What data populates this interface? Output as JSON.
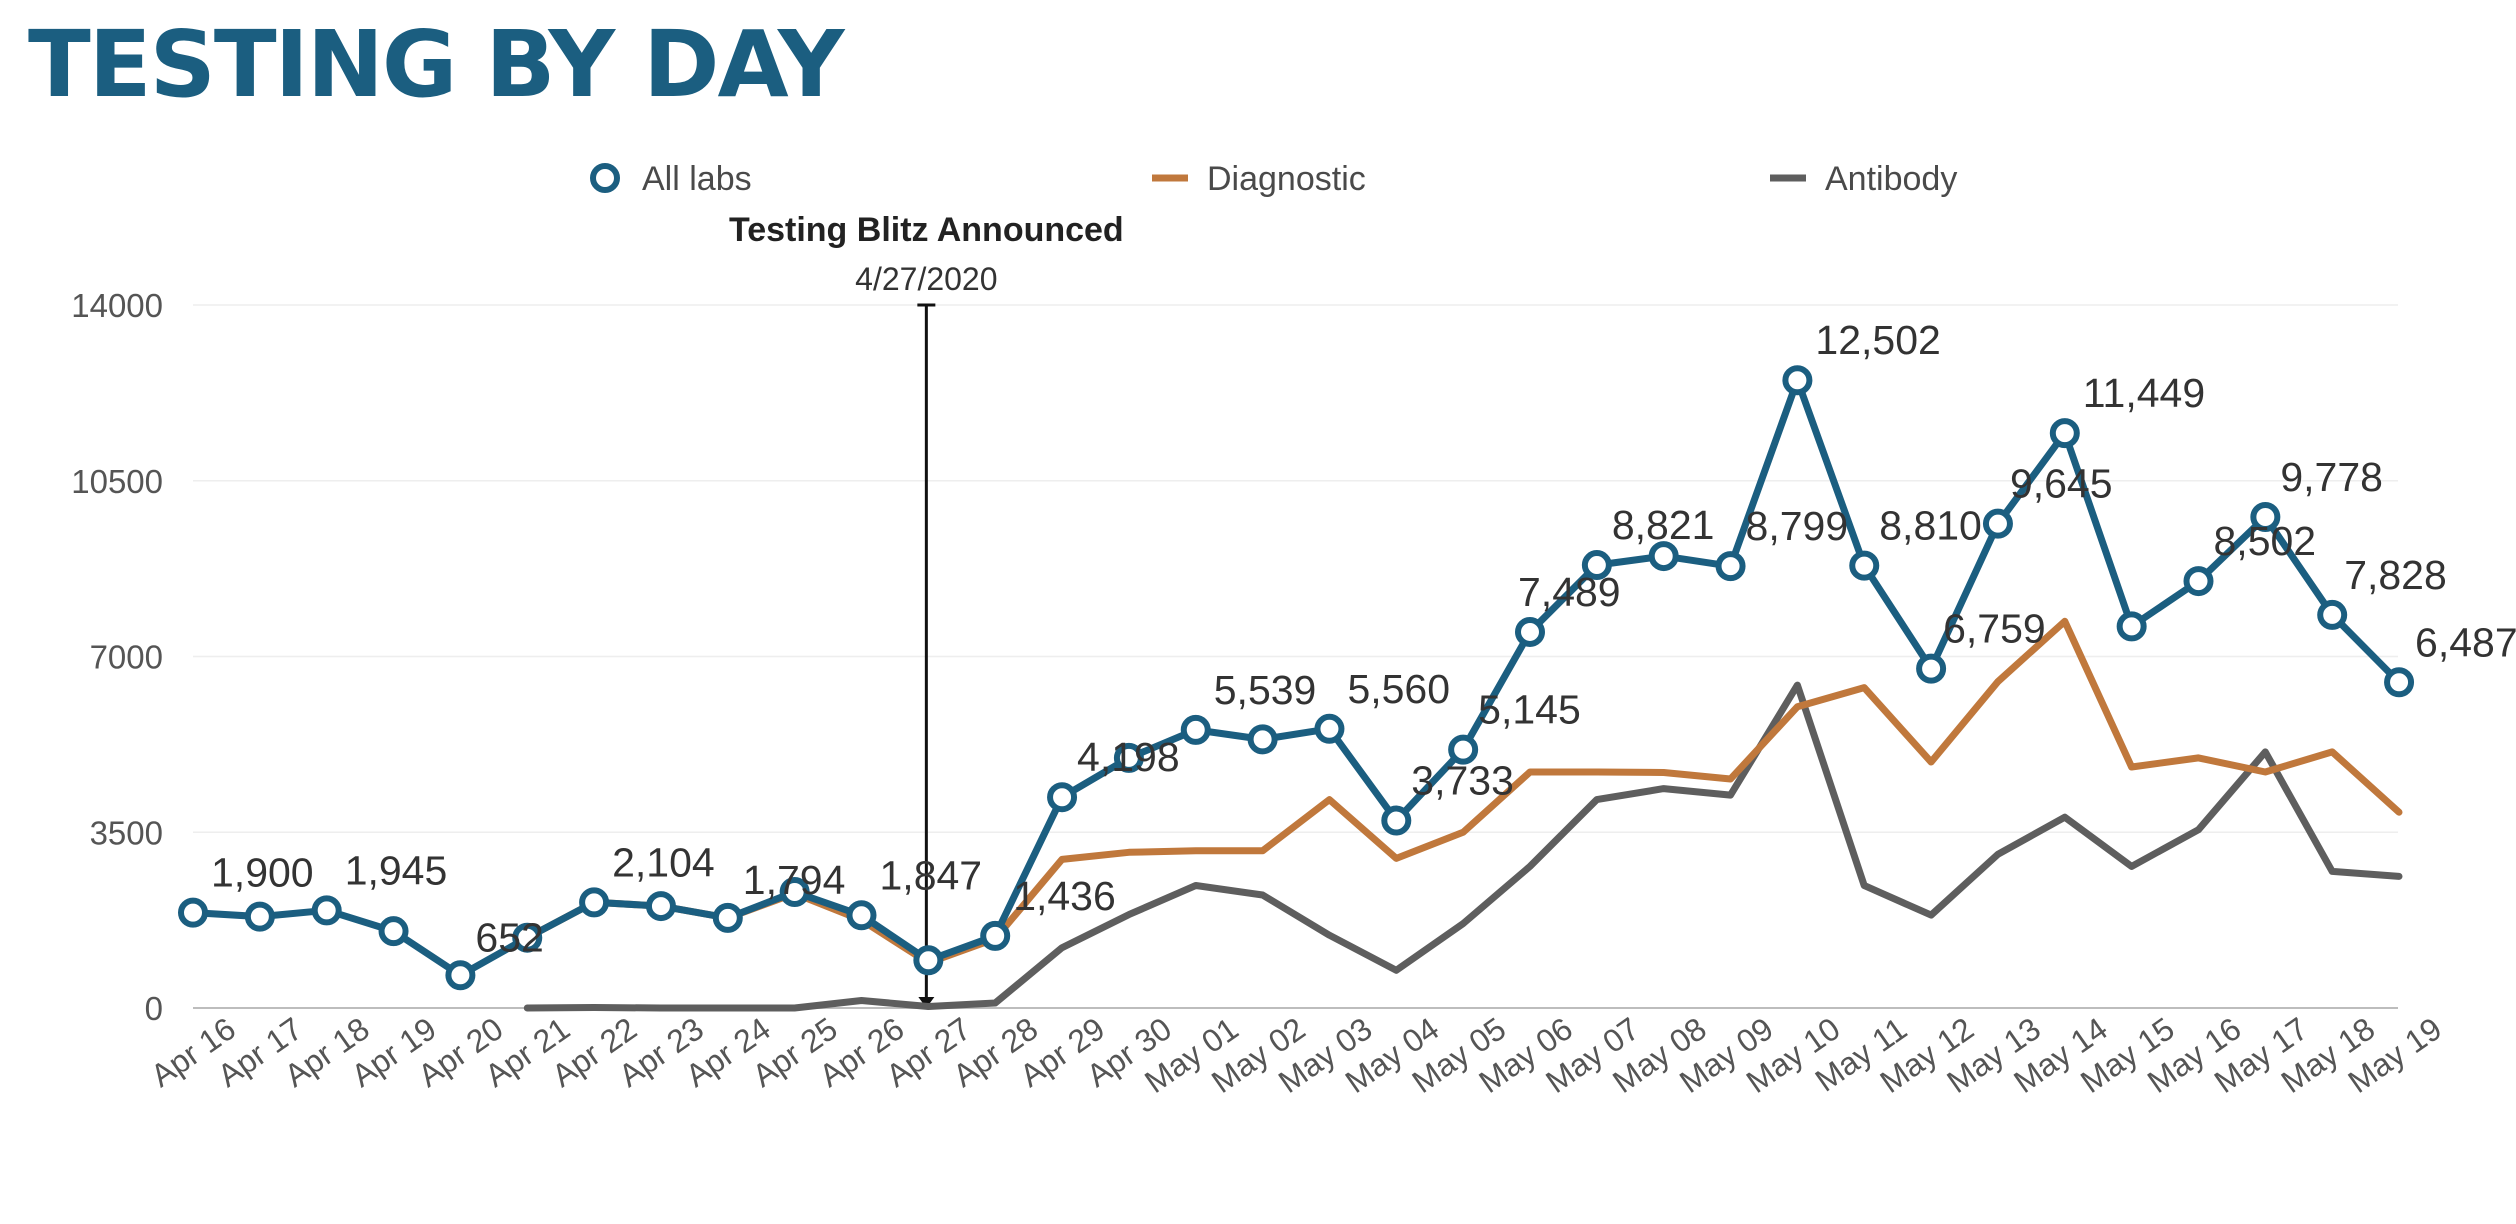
{
  "title": "TESTING BY DAY",
  "chart_data": {
    "type": "line",
    "title": "TESTING BY DAY",
    "xlabel": "",
    "ylabel": "",
    "ylim": [
      0,
      14000
    ],
    "yticks": [
      0,
      3500,
      7000,
      10500,
      14000
    ],
    "grid": true,
    "legend_position": "top",
    "categories": [
      "Apr 16",
      "Apr 17",
      "Apr 18",
      "Apr 19",
      "Apr 20",
      "Apr 21",
      "Apr 22",
      "Apr 23",
      "Apr 24",
      "Apr 25",
      "Apr 26",
      "Apr 27",
      "Apr 28",
      "Apr 29",
      "Apr 30",
      "May 01",
      "May 02",
      "May 03",
      "May 04",
      "May 05",
      "May 06",
      "May 07",
      "May 08",
      "May 09",
      "May 10",
      "May 11",
      "May 12",
      "May 13",
      "May 14",
      "May 15",
      "May 16",
      "May 17",
      "May 18",
      "May 19"
    ],
    "series": [
      {
        "name": "All labs",
        "color": "#1b5e80",
        "markers": true,
        "values": [
          1900,
          1820,
          1945,
          1530,
          652,
          1400,
          2104,
          2030,
          1794,
          2310,
          1847,
          950,
          1436,
          4198,
          4980,
          5539,
          5350,
          5560,
          3733,
          5145,
          7489,
          8821,
          9000,
          8799,
          12502,
          8810,
          6759,
          9645,
          11449,
          7600,
          8502,
          9778,
          7828,
          6487
        ]
      },
      {
        "name": "Diagnostic",
        "color": "#c0783c",
        "markers": false,
        "values": [
          null,
          null,
          null,
          null,
          null,
          1400,
          2104,
          2030,
          1794,
          2280,
          1750,
          900,
          1380,
          2960,
          3100,
          3130,
          3130,
          4150,
          2980,
          3500,
          4700,
          4700,
          4690,
          4560,
          6000,
          6380,
          4900,
          6500,
          7700,
          4800,
          4980,
          4700,
          5100,
          3900
        ]
      },
      {
        "name": "Antibody",
        "color": "#5e5e5e",
        "markers": false,
        "values": [
          null,
          null,
          null,
          null,
          null,
          0,
          10,
          0,
          0,
          0,
          150,
          30,
          100,
          1200,
          1860,
          2440,
          2250,
          1450,
          750,
          1680,
          2820,
          4150,
          4370,
          4240,
          6430,
          2440,
          1850,
          3060,
          3800,
          2820,
          3550,
          5100,
          2720,
          2620
        ]
      }
    ],
    "data_labels": [
      {
        "series": "All labs",
        "index": 0,
        "text": "1,900"
      },
      {
        "series": "All labs",
        "index": 2,
        "text": "1,945"
      },
      {
        "series": "All labs",
        "index": 4,
        "text": "652"
      },
      {
        "series": "All labs",
        "index": 6,
        "text": "2,104"
      },
      {
        "series": "All labs",
        "index": 8,
        "text": "1,794"
      },
      {
        "series": "All labs",
        "index": 10,
        "text": "1,847"
      },
      {
        "series": "All labs",
        "index": 12,
        "text": "1,436"
      },
      {
        "series": "All labs",
        "index": 13,
        "text": "4,198"
      },
      {
        "series": "All labs",
        "index": 15,
        "text": "5,539"
      },
      {
        "series": "All labs",
        "index": 17,
        "text": "5,560"
      },
      {
        "series": "All labs",
        "index": 18,
        "text": "3,733"
      },
      {
        "series": "All labs",
        "index": 19,
        "text": "5,145"
      },
      {
        "series": "All labs",
        "index": 20,
        "text": "7,489"
      },
      {
        "series": "All labs",
        "index": 21,
        "text": "8,821"
      },
      {
        "series": "All labs",
        "index": 23,
        "text": "8,799"
      },
      {
        "series": "All labs",
        "index": 24,
        "text": "12,502"
      },
      {
        "series": "All labs",
        "index": 25,
        "text": "8,810"
      },
      {
        "series": "All labs",
        "index": 26,
        "text": "6,759"
      },
      {
        "series": "All labs",
        "index": 27,
        "text": "9,645"
      },
      {
        "series": "All labs",
        "index": 28,
        "text": "11,449"
      },
      {
        "series": "All labs",
        "index": 30,
        "text": "8,502"
      },
      {
        "series": "All labs",
        "index": 31,
        "text": "9,778"
      },
      {
        "series": "All labs",
        "index": 32,
        "text": "7,828"
      },
      {
        "series": "All labs",
        "index": 33,
        "text": "6,487"
      }
    ],
    "annotations": [
      {
        "category": "Apr 27",
        "title": "Testing Blitz Announced",
        "subtitle": "4/27/2020"
      }
    ]
  }
}
